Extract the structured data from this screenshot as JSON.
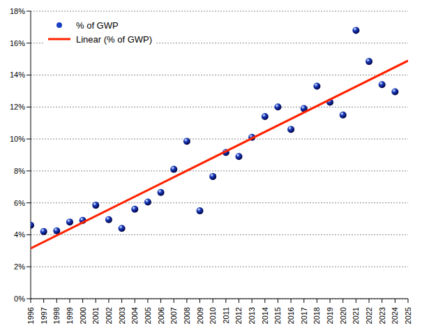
{
  "chart_data": {
    "type": "scatter",
    "xlim": [
      1996,
      2025
    ],
    "xticks": [
      1996,
      1997,
      1998,
      1999,
      2000,
      2001,
      2002,
      2003,
      2004,
      2005,
      2006,
      2007,
      2008,
      2009,
      2010,
      2011,
      2012,
      2013,
      2014,
      2015,
      2016,
      2017,
      2018,
      2019,
      2020,
      2021,
      2022,
      2023,
      2024,
      2025
    ],
    "ylim": [
      0,
      18
    ],
    "yticks": [
      {
        "value": 0,
        "label": "0%"
      },
      {
        "value": 2,
        "label": "2%"
      },
      {
        "value": 4,
        "label": "4%"
      },
      {
        "value": 6,
        "label": "6%"
      },
      {
        "value": 8,
        "label": "8%"
      },
      {
        "value": 10,
        "label": "10%"
      },
      {
        "value": 12,
        "label": "12%"
      },
      {
        "value": 14,
        "label": "14%"
      },
      {
        "value": 16,
        "label": "16%"
      },
      {
        "value": 18,
        "label": "18%"
      }
    ],
    "grid": true,
    "legend": "top-left",
    "series": [
      {
        "name": "% of GWP",
        "type": "scatter",
        "marker": "circle",
        "color": "#1a3fc4",
        "x": [
          1996,
          1997,
          1998,
          1999,
          2000,
          2001,
          2002,
          2003,
          2004,
          2005,
          2006,
          2007,
          2008,
          2009,
          2010,
          2011,
          2012,
          2013,
          2014,
          2015,
          2016,
          2017,
          2018,
          2019,
          2020,
          2021,
          2022,
          2023,
          2024
        ],
        "values": [
          4.6,
          4.2,
          4.25,
          4.8,
          4.9,
          5.85,
          4.95,
          4.4,
          5.6,
          6.05,
          6.65,
          8.1,
          9.85,
          5.5,
          7.65,
          9.15,
          8.9,
          10.1,
          11.4,
          12.0,
          10.6,
          11.9,
          13.3,
          12.3,
          11.5,
          16.8,
          14.85,
          13.4,
          12.95
        ]
      },
      {
        "name": "Linear (% of GWP)",
        "type": "line",
        "color": "#ff2200",
        "x": [
          1996,
          2025
        ],
        "values": [
          3.15,
          14.9
        ]
      }
    ]
  }
}
